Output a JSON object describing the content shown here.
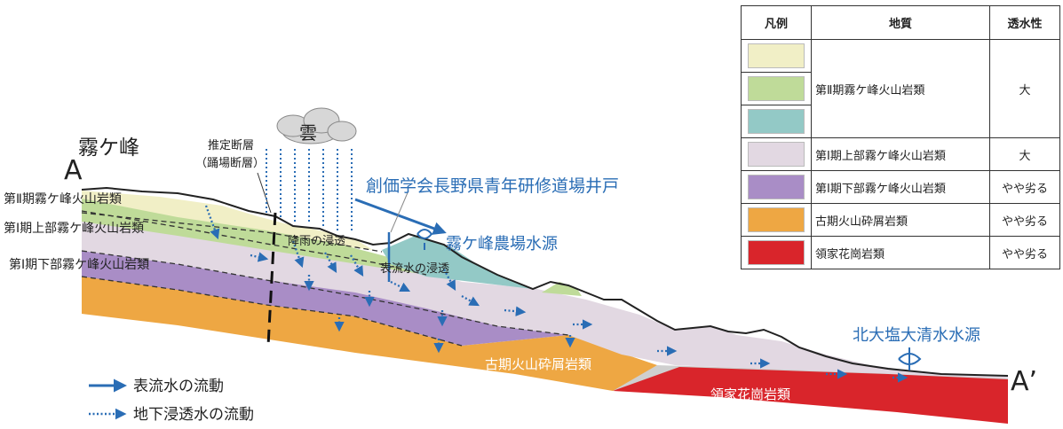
{
  "labels": {
    "point_a": "A",
    "point_a_prime": "A’",
    "kirigamine": "霧ケ峰",
    "cloud": "雲",
    "fault": "推定断層\n（踊場断層）",
    "layer_2": "第Ⅱ期霧ケ峰火山岩類",
    "layer_1_upper": "第Ⅰ期上部霧ケ峰火山岩類",
    "layer_1_lower": "第Ⅰ期下部霧ケ峰火山岩類",
    "well": "創価学会長野県青年研修道場井戸",
    "farm_source": "霧ケ峰農場水源",
    "rain_infiltration": "降雨の浸透",
    "surface_infiltration": "表流水の浸透",
    "kitaoshio_source": "北大塩大清水水源",
    "old_volcanic": "古期火山砕屑岩類",
    "ryoke": "領家花崗岩類"
  },
  "flow_legend": {
    "surface_flow": "表流水の流動",
    "groundwater_flow": "地下浸透水の流動"
  },
  "legend": {
    "headers": [
      "凡例",
      "地質",
      "透水性"
    ],
    "rows": [
      {
        "color": "#f1efc6",
        "geology": "第Ⅱ期霧ケ峰火山岩類",
        "permeability": "大"
      },
      {
        "color": "#bfdb99"
      },
      {
        "color": "#93c9c6"
      },
      {
        "color": "#e2d8e2",
        "geology": "第Ⅰ期上部霧ケ峰火山岩類",
        "permeability": "大"
      },
      {
        "color": "#a98dc6",
        "geology": "第Ⅰ期下部霧ケ峰火山岩類",
        "permeability": "やや劣る"
      },
      {
        "color": "#eea743",
        "geology": "古期火山砕屑岩類",
        "permeability": "やや劣る"
      },
      {
        "color": "#d9252b",
        "geology": "領家花崗岩類",
        "permeability": "やや劣る"
      }
    ]
  },
  "colors": {
    "arrow_blue": "#2a6db5",
    "layer_2_pale": "#f1efc6",
    "layer_2_green": "#bfdb99",
    "layer_2_teal": "#93c9c6",
    "layer_1_upper": "#e2d8e2",
    "layer_1_lower": "#a98dc6",
    "old_volcanic": "#eea743",
    "ryoke": "#d9252b",
    "basement_gray": "#cfcfcf"
  }
}
